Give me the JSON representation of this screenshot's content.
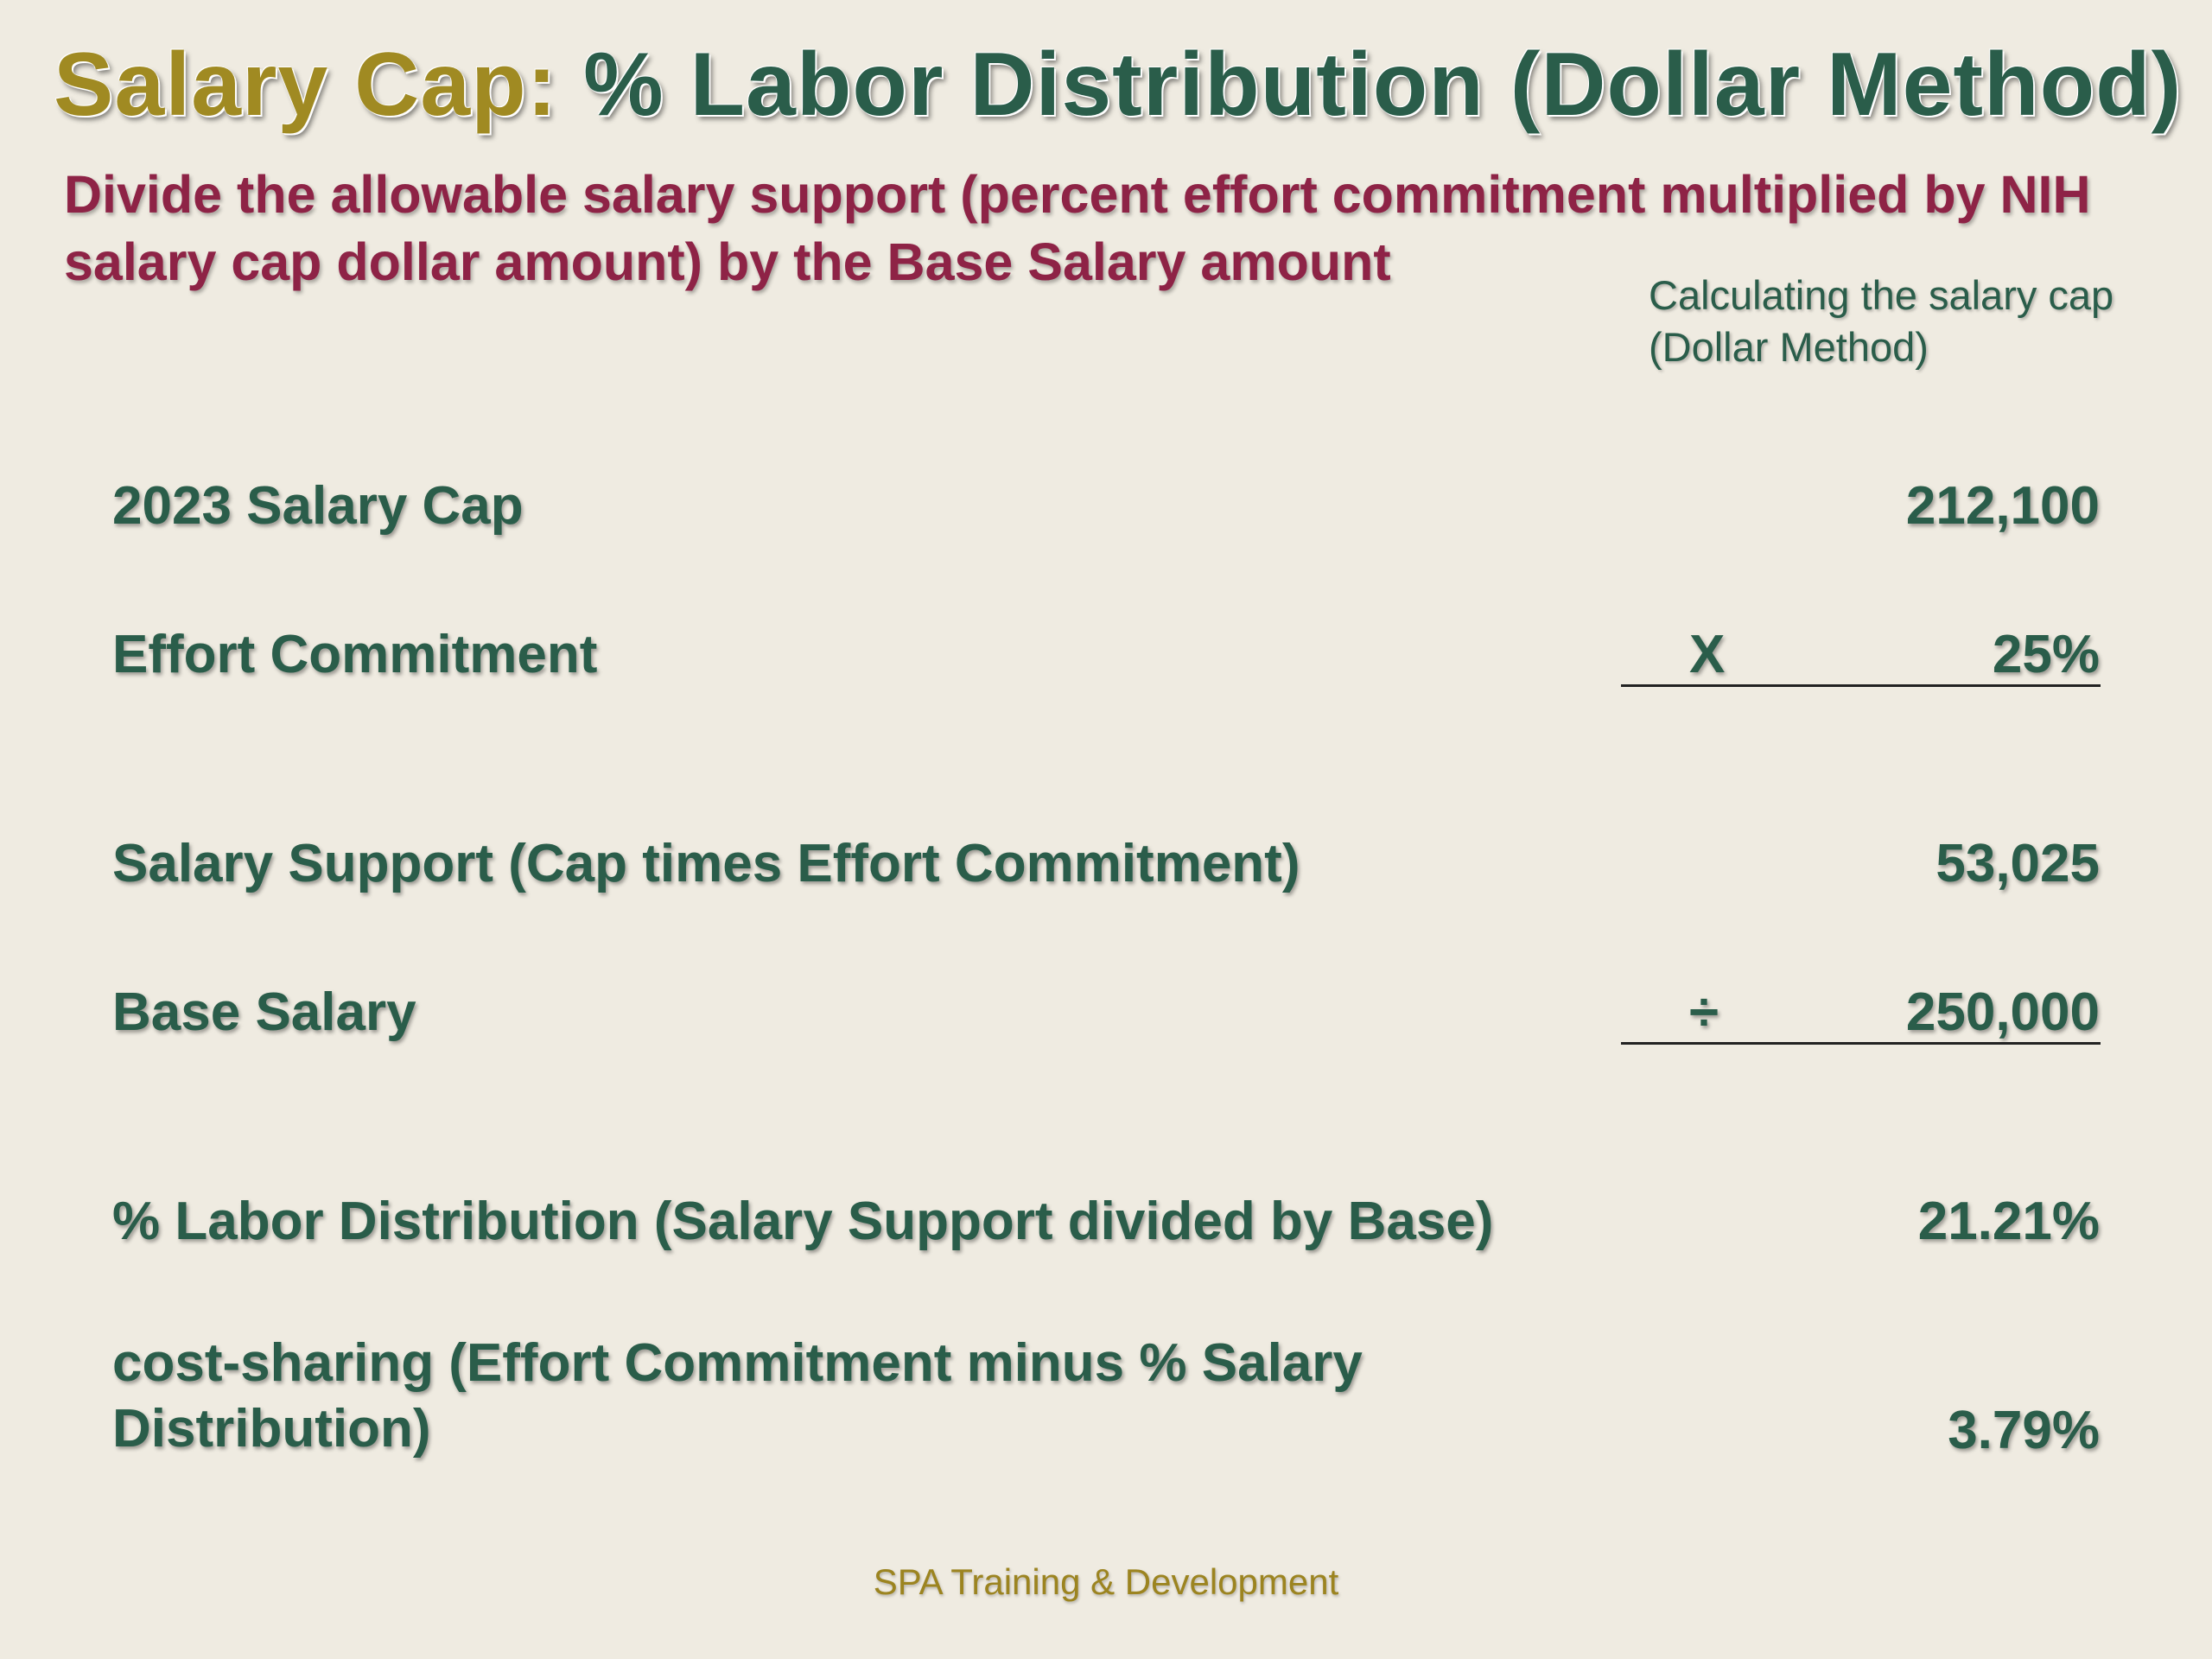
{
  "title": {
    "part1": "Salary Cap:",
    "part2": " % Labor Distribution (Dollar Method)"
  },
  "subtitle": "Divide the allowable salary support (percent effort commitment multiplied by NIH salary cap dollar amount) by the Base Salary amount",
  "sidenote": {
    "line1": "Calculating the salary cap",
    "line2": "(Dollar Method)"
  },
  "rows": [
    {
      "label": "2023 Salary Cap",
      "operator": "",
      "value": "212,100"
    },
    {
      "label": "Effort Commitment",
      "operator": "X",
      "value": "25%"
    },
    {
      "label": "Salary Support (Cap times Effort Commitment)",
      "operator": "",
      "value": "53,025"
    },
    {
      "label": "Base Salary",
      "operator": "÷",
      "value": "250,000"
    },
    {
      "label": "% Labor Distribution (Salary Support divided by Base)",
      "operator": "",
      "value": "21.21%"
    },
    {
      "label": "cost-sharing (Effort Commitment minus % Salary Distribution)",
      "operator": "",
      "value": "3.79%"
    }
  ],
  "footer": "SPA Training & Development",
  "colors": {
    "background": "#efebe1",
    "title_gold": "#a08a22",
    "green": "#2a5d4a",
    "maroon": "#8e2346",
    "footer_gold": "#9c8420"
  }
}
